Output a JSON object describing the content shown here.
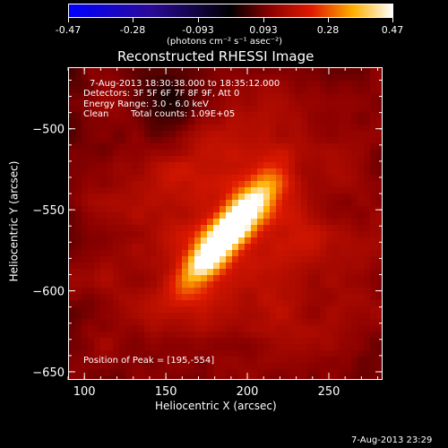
{
  "chart_data": {
    "type": "heatmap",
    "title": "Reconstructed RHESSI Image",
    "xlabel": "Heliocentric X (arcsec)",
    "ylabel": "Heliocentric Y (arcsec)",
    "xlim": [
      90,
      283
    ],
    "ylim": [
      -655,
      -462
    ],
    "x_ticks": [
      100,
      150,
      200,
      250
    ],
    "y_ticks": [
      -500,
      -550,
      -600,
      -650
    ],
    "colorbar": {
      "range": [
        -0.47,
        0.47
      ],
      "ticks": [
        "-0.47",
        "-0.28",
        "-0.093",
        "0.093",
        "0.28",
        "0.47"
      ],
      "unit_label": "(photons cm⁻² s⁻¹ asec⁻²)",
      "colormap": "blue-black-red-yellow-white"
    },
    "annotations": {
      "time_range": "7-Aug-2013 18:30:38.000 to 18:35:12.000",
      "detectors": "Detectors: 3F 5F 6F 7F 8F 9F, Att 0",
      "energy_range": "Energy Range: 3.0 - 6.0 keV",
      "clean": "Clean",
      "total_counts": "Total counts: 1.09E+05",
      "peak_position": "Position of Peak = [195,-554]"
    },
    "peak": {
      "x": 195,
      "y": -554
    },
    "source": {
      "center_x": 188,
      "center_y": -563,
      "angle_deg": 50,
      "major_sigma": 26,
      "minor_sigma": 7,
      "peak_value": 0.47
    }
  },
  "footer": {
    "timestamp": "7-Aug-2013 23:29"
  },
  "colors": {
    "background": "#000000",
    "text": "#ffffff"
  }
}
